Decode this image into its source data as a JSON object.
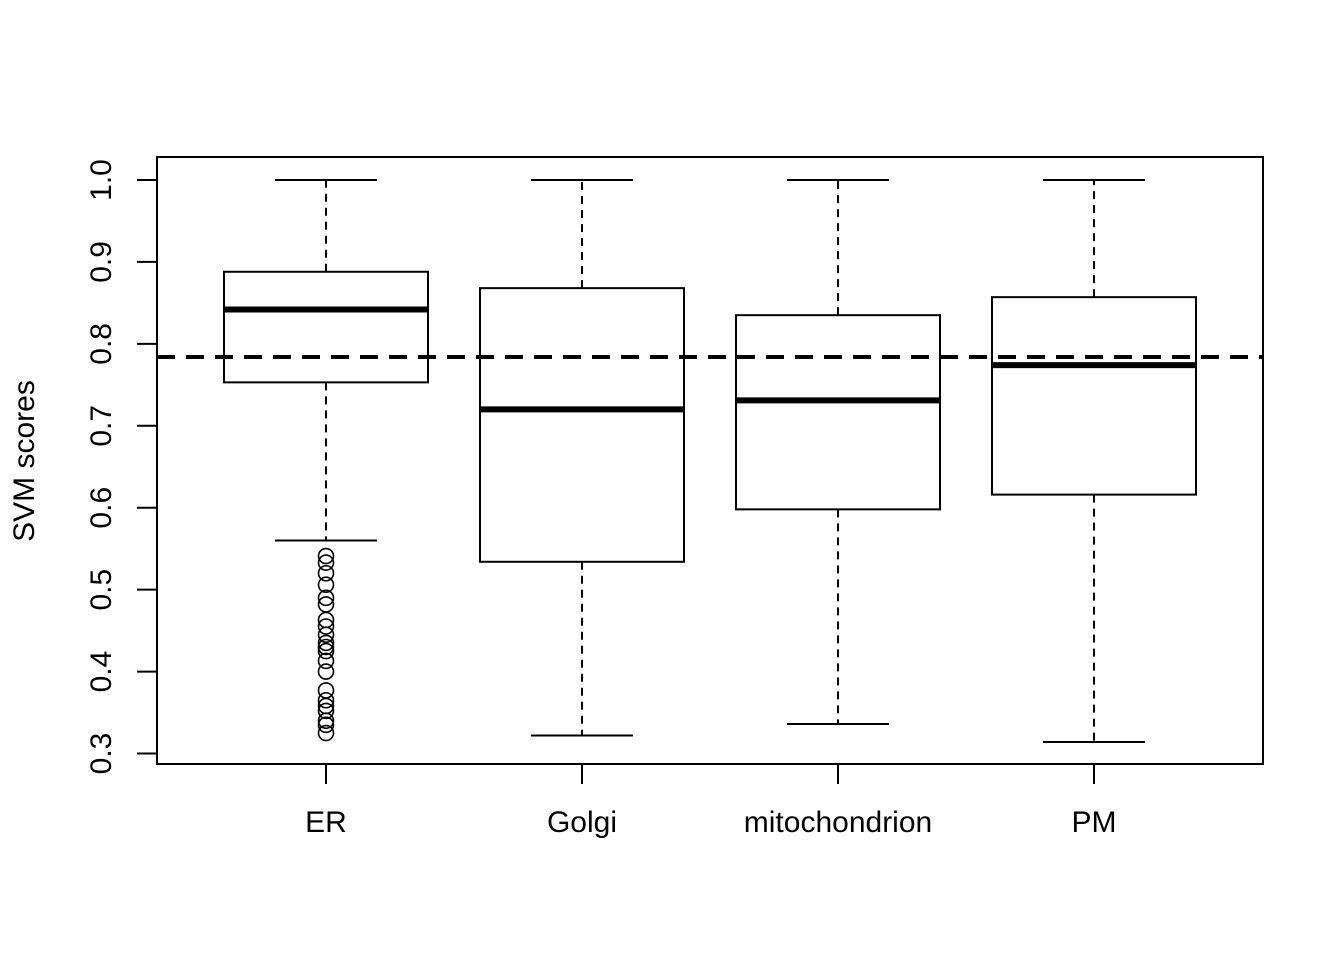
{
  "chart_data": {
    "type": "boxplot",
    "title": "",
    "xlabel": "",
    "ylabel": "SVM scores",
    "ylim": [
      0.3,
      1.0
    ],
    "yticks": [
      "0.3",
      "0.4",
      "0.5",
      "0.6",
      "0.7",
      "0.8",
      "0.9",
      "1.0"
    ],
    "categories": [
      "ER",
      "Golgi",
      "mitochondrion",
      "PM"
    ],
    "boxes": [
      {
        "category": "ER",
        "whisker_low": 0.56,
        "q1": 0.753,
        "median": 0.842,
        "q3": 0.888,
        "whisker_high": 1.0,
        "outliers": [
          0.541,
          0.533,
          0.52,
          0.506,
          0.49,
          0.482,
          0.463,
          0.455,
          0.445,
          0.435,
          0.43,
          0.425,
          0.413,
          0.4,
          0.377,
          0.365,
          0.358,
          0.352,
          0.34,
          0.335,
          0.325
        ]
      },
      {
        "category": "Golgi",
        "whisker_low": 0.322,
        "q1": 0.534,
        "median": 0.72,
        "q3": 0.868,
        "whisker_high": 1.0,
        "outliers": []
      },
      {
        "category": "mitochondrion",
        "whisker_low": 0.336,
        "q1": 0.598,
        "median": 0.731,
        "q3": 0.835,
        "whisker_high": 1.0,
        "outliers": []
      },
      {
        "category": "PM",
        "whisker_low": 0.314,
        "q1": 0.616,
        "median": 0.774,
        "q3": 0.857,
        "whisker_high": 1.0,
        "outliers": []
      }
    ],
    "reference_line": {
      "y": 0.784,
      "style": "dashed"
    },
    "grid": false,
    "legend": "none"
  }
}
